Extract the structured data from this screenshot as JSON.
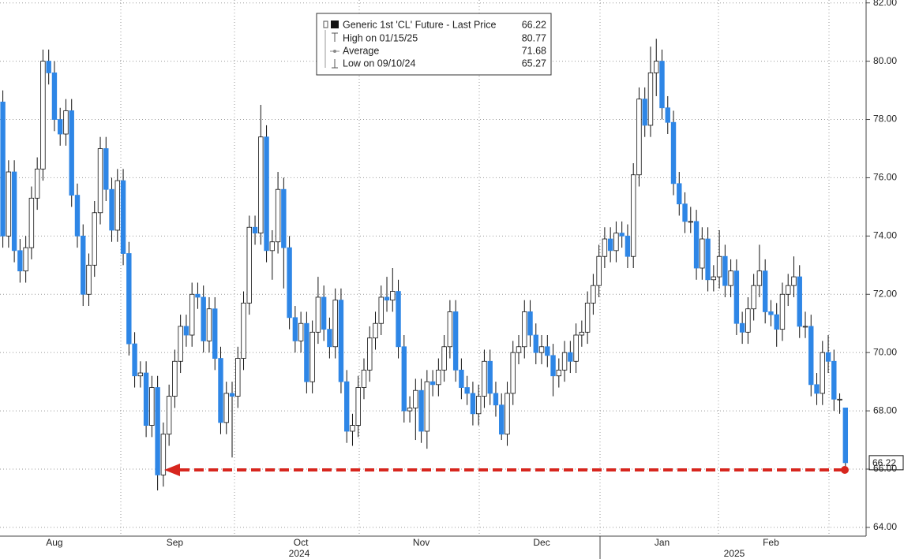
{
  "chart_data": {
    "type": "candlestick",
    "legend": {
      "title": "Generic 1st 'CL' Future - Last Price",
      "last_price": 66.22,
      "stats": [
        {
          "label": "High on 01/15/25",
          "value": 80.77
        },
        {
          "label": "Average",
          "value": 71.68
        },
        {
          "label": "Low on 09/10/24",
          "value": 65.27
        }
      ]
    },
    "up_color": "#ffffff",
    "down_color": "#2e86e6",
    "grid": true,
    "ylim": [
      63.7,
      82.1
    ],
    "yticks": [
      {
        "value": 64,
        "label": "64.00"
      },
      {
        "value": 66,
        "label": "66.00"
      },
      {
        "value": 68,
        "label": "68.00"
      },
      {
        "value": 70,
        "label": "70.00"
      },
      {
        "value": 72,
        "label": "72.00"
      },
      {
        "value": 74,
        "label": "74.00"
      },
      {
        "value": 76,
        "label": "76.00"
      },
      {
        "value": 78,
        "label": "78.00"
      },
      {
        "value": 80,
        "label": "80.00"
      },
      {
        "value": 82,
        "label": "82.00"
      }
    ],
    "year_labels": [
      "2024",
      "2025"
    ],
    "categories": [
      null,
      null,
      null,
      null,
      null,
      null,
      null,
      null,
      null,
      "Aug",
      null,
      null,
      null,
      null,
      null,
      null,
      null,
      null,
      null,
      null,
      null,
      null,
      null,
      null,
      null,
      null,
      null,
      null,
      null,
      null,
      "Sep",
      null,
      null,
      null,
      null,
      null,
      null,
      null,
      null,
      null,
      null,
      null,
      null,
      null,
      null,
      null,
      null,
      null,
      null,
      null,
      null,
      null,
      "Oct",
      null,
      null,
      null,
      null,
      null,
      null,
      null,
      null,
      null,
      null,
      null,
      null,
      null,
      null,
      null,
      null,
      null,
      null,
      null,
      null,
      "Nov",
      null,
      null,
      null,
      null,
      null,
      null,
      null,
      null,
      null,
      null,
      null,
      null,
      null,
      null,
      null,
      null,
      null,
      null,
      null,
      null,
      "Dec",
      null,
      null,
      null,
      null,
      null,
      null,
      null,
      null,
      null,
      null,
      null,
      null,
      null,
      null,
      null,
      null,
      null,
      null,
      null,
      null,
      "Jan",
      null,
      null,
      null,
      null,
      null,
      null,
      null,
      null,
      null,
      null,
      null,
      null,
      null,
      null,
      null,
      null,
      null,
      null,
      "Feb",
      null,
      null,
      null,
      null,
      null,
      null,
      null,
      null,
      null,
      null,
      null,
      null,
      null
    ],
    "series": [
      {
        "name": "Generic 1st 'CL' Future - Last Price",
        "values": [
          [
            78.6,
            79.0,
            73.6,
            74.0
          ],
          [
            74.0,
            76.6,
            73.6,
            76.2
          ],
          [
            76.2,
            76.6,
            73.1,
            73.5
          ],
          [
            73.5,
            73.9,
            72.4,
            72.8
          ],
          [
            72.8,
            74.0,
            72.4,
            73.6
          ],
          [
            73.6,
            75.7,
            73.2,
            75.3
          ],
          [
            75.3,
            76.7,
            74.9,
            76.3
          ],
          [
            76.3,
            80.4,
            75.9,
            80.0
          ],
          [
            80.0,
            80.4,
            79.2,
            79.6
          ],
          [
            79.6,
            80.0,
            77.6,
            78.0
          ],
          [
            78.0,
            78.4,
            77.1,
            77.5
          ],
          [
            77.5,
            78.7,
            77.1,
            78.3
          ],
          [
            78.3,
            78.7,
            75.0,
            75.4
          ],
          [
            75.4,
            75.8,
            73.6,
            74.0
          ],
          [
            74.0,
            74.4,
            71.6,
            72.0
          ],
          [
            72.0,
            73.4,
            71.6,
            73.0
          ],
          [
            73.0,
            75.2,
            72.6,
            74.8
          ],
          [
            74.8,
            77.4,
            74.4,
            77.0
          ],
          [
            77.0,
            77.4,
            75.2,
            75.6
          ],
          [
            75.6,
            76.0,
            73.8,
            74.2
          ],
          [
            74.2,
            76.3,
            73.8,
            75.9
          ],
          [
            75.9,
            76.3,
            73.0,
            73.4
          ],
          [
            73.4,
            73.8,
            69.9,
            70.3
          ],
          [
            70.3,
            70.7,
            68.8,
            69.2
          ],
          [
            69.2,
            69.7,
            68.8,
            69.3
          ],
          [
            69.3,
            69.7,
            67.1,
            67.5
          ],
          [
            67.5,
            69.2,
            67.1,
            68.8
          ],
          [
            68.8,
            69.2,
            65.27,
            65.8
          ],
          [
            65.8,
            67.6,
            65.4,
            67.2
          ],
          [
            67.2,
            68.9,
            66.8,
            68.5
          ],
          [
            68.5,
            70.1,
            68.1,
            69.7
          ],
          [
            69.7,
            71.3,
            69.3,
            70.9
          ],
          [
            70.9,
            71.3,
            70.2,
            70.6
          ],
          [
            70.6,
            72.4,
            70.2,
            72.0
          ],
          [
            72.0,
            72.4,
            71.5,
            71.9
          ],
          [
            71.9,
            72.3,
            70.0,
            70.4
          ],
          [
            70.4,
            71.9,
            70.0,
            71.5
          ],
          [
            71.5,
            71.9,
            69.4,
            69.8
          ],
          [
            69.8,
            70.2,
            67.2,
            67.6
          ],
          [
            67.6,
            69.0,
            67.2,
            68.6
          ],
          [
            68.6,
            69.0,
            66.4,
            68.5
          ],
          [
            68.5,
            70.2,
            68.1,
            69.8
          ],
          [
            69.8,
            72.1,
            69.4,
            71.7
          ],
          [
            71.7,
            74.7,
            71.3,
            74.3
          ],
          [
            74.3,
            74.7,
            73.7,
            74.1
          ],
          [
            74.1,
            78.5,
            73.7,
            77.4
          ],
          [
            77.4,
            77.8,
            73.1,
            73.5
          ],
          [
            73.5,
            74.2,
            72.5,
            73.8
          ],
          [
            73.8,
            76.2,
            73.4,
            75.6
          ],
          [
            75.6,
            76.0,
            72.2,
            73.6
          ],
          [
            73.6,
            74.0,
            70.8,
            71.2
          ],
          [
            71.2,
            71.6,
            70.0,
            70.4
          ],
          [
            70.4,
            71.4,
            70.0,
            71.0
          ],
          [
            71.0,
            71.4,
            68.6,
            69.0
          ],
          [
            69.0,
            71.1,
            68.6,
            70.7
          ],
          [
            70.7,
            72.6,
            70.3,
            71.9
          ],
          [
            71.9,
            72.3,
            70.4,
            70.8
          ],
          [
            70.8,
            71.2,
            69.8,
            70.2
          ],
          [
            70.2,
            72.2,
            69.8,
            71.8
          ],
          [
            71.8,
            72.2,
            68.6,
            69.0
          ],
          [
            69.0,
            69.4,
            66.9,
            67.3
          ],
          [
            67.3,
            67.9,
            66.8,
            67.5
          ],
          [
            67.5,
            69.2,
            67.1,
            68.8
          ],
          [
            68.8,
            69.8,
            68.4,
            69.4
          ],
          [
            69.4,
            70.9,
            69.0,
            70.5
          ],
          [
            70.5,
            71.4,
            70.1,
            71.0
          ],
          [
            71.0,
            72.3,
            70.6,
            71.9
          ],
          [
            71.9,
            72.6,
            71.4,
            71.8
          ],
          [
            71.8,
            72.9,
            71.4,
            72.1
          ],
          [
            72.1,
            72.5,
            69.8,
            70.2
          ],
          [
            70.2,
            70.6,
            67.6,
            68.0
          ],
          [
            68.0,
            68.5,
            67.6,
            68.1
          ],
          [
            68.1,
            69.1,
            67.0,
            68.7
          ],
          [
            68.7,
            69.1,
            66.9,
            67.3
          ],
          [
            67.3,
            69.4,
            66.7,
            69.0
          ],
          [
            69.0,
            69.4,
            68.5,
            68.9
          ],
          [
            68.9,
            69.8,
            68.5,
            69.4
          ],
          [
            69.4,
            70.6,
            69.0,
            70.2
          ],
          [
            70.2,
            71.8,
            69.8,
            71.4
          ],
          [
            71.4,
            71.8,
            69.0,
            69.4
          ],
          [
            69.4,
            69.8,
            68.4,
            68.8
          ],
          [
            68.8,
            69.2,
            68.2,
            68.6
          ],
          [
            68.6,
            69.0,
            67.5,
            67.9
          ],
          [
            67.9,
            68.9,
            67.5,
            68.5
          ],
          [
            68.5,
            70.1,
            68.1,
            69.7
          ],
          [
            69.7,
            70.1,
            68.2,
            68.6
          ],
          [
            68.6,
            69.0,
            67.8,
            68.2
          ],
          [
            68.2,
            68.6,
            67.0,
            67.2
          ],
          [
            67.2,
            69.0,
            66.8,
            68.6
          ],
          [
            68.6,
            70.4,
            68.2,
            70.0
          ],
          [
            70.0,
            70.6,
            69.6,
            70.2
          ],
          [
            70.2,
            71.8,
            69.8,
            71.4
          ],
          [
            71.4,
            71.8,
            70.2,
            70.6
          ],
          [
            70.6,
            71.0,
            69.6,
            70.0
          ],
          [
            70.0,
            70.6,
            69.6,
            70.2
          ],
          [
            70.2,
            70.6,
            69.5,
            69.9
          ],
          [
            69.9,
            70.3,
            68.5,
            69.2
          ],
          [
            69.2,
            69.8,
            68.8,
            69.4
          ],
          [
            69.4,
            70.4,
            69.0,
            70.0
          ],
          [
            70.0,
            70.4,
            69.3,
            69.7
          ],
          [
            69.7,
            71.0,
            69.3,
            70.6
          ],
          [
            70.6,
            71.1,
            70.2,
            70.7
          ],
          [
            70.7,
            72.1,
            70.3,
            71.7
          ],
          [
            71.7,
            72.7,
            71.3,
            72.3
          ],
          [
            72.3,
            73.7,
            71.9,
            73.3
          ],
          [
            73.3,
            74.3,
            72.9,
            73.9
          ],
          [
            73.9,
            74.3,
            73.1,
            73.5
          ],
          [
            73.5,
            74.5,
            73.1,
            74.1
          ],
          [
            74.1,
            74.5,
            73.6,
            74.0
          ],
          [
            74.0,
            74.4,
            72.9,
            73.3
          ],
          [
            73.3,
            76.5,
            72.9,
            76.1
          ],
          [
            76.1,
            79.1,
            75.7,
            78.7
          ],
          [
            78.7,
            79.1,
            77.4,
            77.8
          ],
          [
            77.8,
            80.5,
            77.4,
            79.6
          ],
          [
            79.6,
            80.77,
            78.8,
            80.0
          ],
          [
            80.0,
            80.4,
            78.0,
            78.4
          ],
          [
            78.4,
            78.8,
            77.5,
            77.9
          ],
          [
            77.9,
            78.3,
            75.4,
            75.8
          ],
          [
            75.8,
            76.2,
            74.7,
            75.1
          ],
          [
            75.1,
            75.5,
            74.1,
            74.5
          ],
          [
            74.5,
            75.0,
            74.1,
            74.5
          ],
          [
            74.5,
            74.9,
            72.5,
            72.9
          ],
          [
            72.9,
            74.3,
            72.5,
            73.9
          ],
          [
            73.9,
            74.3,
            72.1,
            72.5
          ],
          [
            72.5,
            73.0,
            72.1,
            72.6
          ],
          [
            72.6,
            74.2,
            72.2,
            73.3
          ],
          [
            73.3,
            73.7,
            71.9,
            72.3
          ],
          [
            72.3,
            73.2,
            71.9,
            72.8
          ],
          [
            72.8,
            73.2,
            70.6,
            71.0
          ],
          [
            71.0,
            71.4,
            70.3,
            70.7
          ],
          [
            70.7,
            71.9,
            70.3,
            71.5
          ],
          [
            71.5,
            72.7,
            71.1,
            72.3
          ],
          [
            72.3,
            73.7,
            71.9,
            72.8
          ],
          [
            72.8,
            73.2,
            71.0,
            71.4
          ],
          [
            71.4,
            71.8,
            70.9,
            71.3
          ],
          [
            71.3,
            71.7,
            70.2,
            70.8
          ],
          [
            70.8,
            72.4,
            70.4,
            72.0
          ],
          [
            72.0,
            72.7,
            71.6,
            72.3
          ],
          [
            72.3,
            73.3,
            71.9,
            72.6
          ],
          [
            72.6,
            73.0,
            70.5,
            70.9
          ],
          [
            70.9,
            71.4,
            70.5,
            70.9
          ],
          [
            70.9,
            71.3,
            68.5,
            68.9
          ],
          [
            68.9,
            69.3,
            68.2,
            68.6
          ],
          [
            68.6,
            70.4,
            68.2,
            70.0
          ],
          [
            70.0,
            70.6,
            69.3,
            69.7
          ],
          [
            69.7,
            70.1,
            68.0,
            68.4
          ],
          [
            68.4,
            68.6,
            67.9,
            68.4
          ],
          [
            68.1,
            68.1,
            66.1,
            66.22
          ]
        ]
      }
    ]
  }
}
